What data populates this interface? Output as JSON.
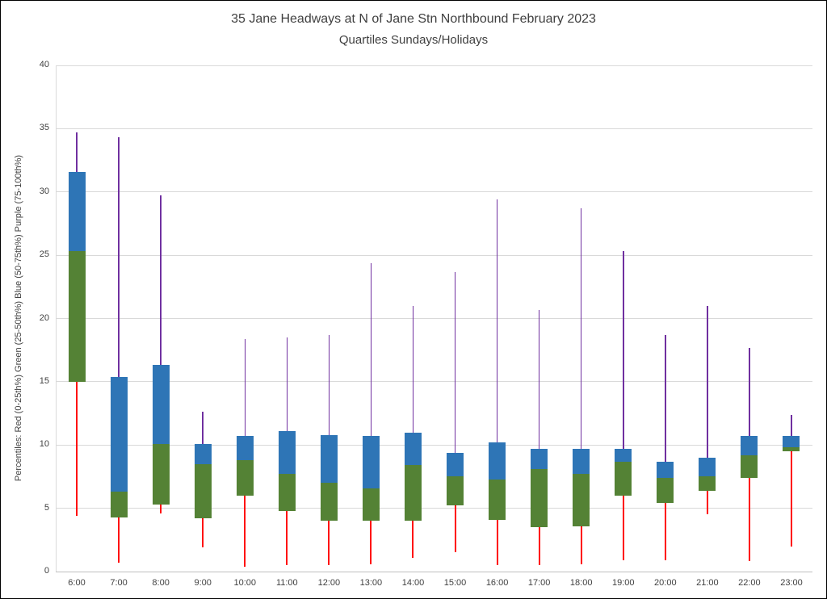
{
  "title": {
    "line1": "35 Jane Headways at N of Jane Stn Northbound February 2023",
    "line2": "Quartiles Sundays/Holidays"
  },
  "y_axis_label": "Percentiles:  Red (0-25th%)  Green (25-50th%)  Blue (50-75th%)  Purple (75-100th%)",
  "chart_data": {
    "type": "boxplot",
    "title": "35 Jane Headways at N of Jane Stn Northbound February 2023",
    "subtitle": "Quartiles Sundays/Holidays",
    "xlabel": "",
    "ylabel": "Percentiles: Red (0-25th%) Green (25-50th%) Blue (50-75th%) Purple (75-100th%)",
    "ylim": [
      0,
      40
    ],
    "ytick_interval": 5,
    "grid": true,
    "legend": "none",
    "colors": {
      "red_whisker": "#ff0000",
      "green_bar": "#548235",
      "blue_bar": "#2e75b6",
      "purple_whisker": "#7030a0",
      "gridline": "#d9d9d9",
      "text": "#404040"
    },
    "categories": [
      "6:00",
      "7:00",
      "8:00",
      "9:00",
      "10:00",
      "11:00",
      "12:00",
      "13:00",
      "14:00",
      "15:00",
      "16:00",
      "17:00",
      "18:00",
      "19:00",
      "20:00",
      "21:00",
      "22:00",
      "23:00"
    ],
    "points": [
      {
        "hour": "6:00",
        "min": 4.4,
        "p25": 15.0,
        "p50": 25.3,
        "p75": 31.6,
        "max": 34.7
      },
      {
        "hour": "7:00",
        "min": 0.7,
        "p25": 4.3,
        "p50": 6.3,
        "p75": 15.4,
        "max": 34.3
      },
      {
        "hour": "8:00",
        "min": 4.6,
        "p25": 5.3,
        "p50": 10.1,
        "p75": 16.3,
        "max": 29.7
      },
      {
        "hour": "9:00",
        "min": 1.9,
        "p25": 4.2,
        "p50": 8.5,
        "p75": 10.1,
        "max": 12.6
      },
      {
        "hour": "10:00",
        "min": 0.4,
        "p25": 6.0,
        "p50": 8.8,
        "p75": 10.7,
        "max": 18.4
      },
      {
        "hour": "11:00",
        "min": 0.5,
        "p25": 4.8,
        "p50": 7.7,
        "p75": 11.1,
        "max": 18.5
      },
      {
        "hour": "12:00",
        "min": 0.5,
        "p25": 4.0,
        "p50": 7.0,
        "p75": 10.8,
        "max": 18.7
      },
      {
        "hour": "13:00",
        "min": 0.6,
        "p25": 4.0,
        "p50": 6.6,
        "p75": 10.7,
        "max": 24.4
      },
      {
        "hour": "14:00",
        "min": 1.1,
        "p25": 4.0,
        "p50": 8.4,
        "p75": 11.0,
        "max": 21.0
      },
      {
        "hour": "15:00",
        "min": 1.5,
        "p25": 5.2,
        "p50": 7.5,
        "p75": 9.4,
        "max": 23.7
      },
      {
        "hour": "16:00",
        "min": 0.5,
        "p25": 4.1,
        "p50": 7.3,
        "p75": 10.2,
        "max": 29.4
      },
      {
        "hour": "17:00",
        "min": 0.5,
        "p25": 3.5,
        "p50": 8.1,
        "p75": 9.7,
        "max": 20.7
      },
      {
        "hour": "18:00",
        "min": 0.6,
        "p25": 3.6,
        "p50": 7.7,
        "p75": 9.7,
        "max": 28.7
      },
      {
        "hour": "19:00",
        "min": 0.9,
        "p25": 6.0,
        "p50": 8.7,
        "p75": 9.7,
        "max": 25.3
      },
      {
        "hour": "20:00",
        "min": 0.9,
        "p25": 5.4,
        "p50": 7.4,
        "p75": 8.7,
        "max": 18.7
      },
      {
        "hour": "21:00",
        "min": 4.5,
        "p25": 6.4,
        "p50": 7.5,
        "p75": 9.0,
        "max": 21.0
      },
      {
        "hour": "22:00",
        "min": 0.8,
        "p25": 7.4,
        "p50": 9.2,
        "p75": 10.7,
        "max": 17.7
      },
      {
        "hour": "23:00",
        "min": 2.0,
        "p25": 9.5,
        "p50": 9.8,
        "p75": 10.7,
        "max": 12.4
      }
    ]
  }
}
